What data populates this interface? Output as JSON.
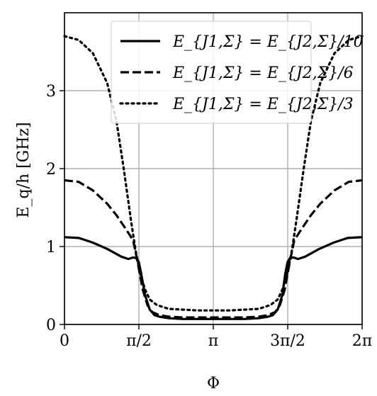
{
  "chart_data": {
    "type": "line",
    "xlabel": "Φ",
    "ylabel": "E_q/h [GHz]",
    "xlim": [
      0,
      6.283185307
    ],
    "ylim": [
      0,
      4.0
    ],
    "grid": true,
    "legend_position": "top-center",
    "x_ticks": [
      {
        "value": 0,
        "label": "0"
      },
      {
        "value": 1.5707963,
        "label": "π/2"
      },
      {
        "value": 3.1415927,
        "label": "π"
      },
      {
        "value": 4.712389,
        "label": "3π/2"
      },
      {
        "value": 6.2831853,
        "label": "2π"
      }
    ],
    "y_ticks": [
      {
        "value": 0,
        "label": "0"
      },
      {
        "value": 1,
        "label": "1"
      },
      {
        "value": 2,
        "label": "2"
      },
      {
        "value": 3,
        "label": "3"
      }
    ],
    "series": [
      {
        "name": "E_{J1,Σ} = E_{J2,Σ}/10",
        "style": "solid",
        "color": "#000000",
        "x": [
          0,
          0.3,
          0.6,
          0.9,
          1.2,
          1.35,
          1.45,
          1.52,
          1.57,
          1.62,
          1.7,
          1.8,
          1.9,
          2.0,
          2.2,
          2.5,
          2.8,
          3.1416,
          3.5,
          3.8,
          4.1,
          4.3,
          4.4,
          4.5,
          4.6,
          4.66,
          4.71,
          4.76,
          4.83,
          4.93,
          5.08,
          5.38,
          5.68,
          5.98,
          6.2832
        ],
        "y": [
          1.12,
          1.11,
          1.05,
          0.97,
          0.87,
          0.84,
          0.86,
          0.85,
          0.8,
          0.65,
          0.38,
          0.19,
          0.12,
          0.1,
          0.08,
          0.07,
          0.07,
          0.07,
          0.07,
          0.07,
          0.08,
          0.1,
          0.12,
          0.19,
          0.38,
          0.65,
          0.8,
          0.85,
          0.86,
          0.84,
          0.87,
          0.97,
          1.05,
          1.11,
          1.12
        ]
      },
      {
        "name": "E_{J1,Σ} = E_{J2,Σ}/6",
        "style": "dashed",
        "color": "#000000",
        "x": [
          0,
          0.3,
          0.6,
          0.9,
          1.1,
          1.3,
          1.45,
          1.55,
          1.65,
          1.75,
          1.85,
          2.0,
          2.2,
          2.5,
          2.8,
          3.1416,
          3.5,
          3.8,
          4.1,
          4.3,
          4.45,
          4.55,
          4.65,
          4.75,
          4.85,
          5.0,
          5.2,
          5.4,
          5.7,
          6.0,
          6.2832
        ],
        "y": [
          1.85,
          1.83,
          1.72,
          1.55,
          1.4,
          1.22,
          1.08,
          0.78,
          0.45,
          0.25,
          0.16,
          0.12,
          0.1,
          0.09,
          0.09,
          0.09,
          0.09,
          0.09,
          0.1,
          0.12,
          0.16,
          0.25,
          0.45,
          0.78,
          1.08,
          1.22,
          1.4,
          1.55,
          1.72,
          1.83,
          1.85
        ]
      },
      {
        "name": "E_{J1,Σ} = E_{J2,Σ}/3",
        "style": "dotted",
        "color": "#000000",
        "x": [
          0,
          0.3,
          0.6,
          0.9,
          1.1,
          1.25,
          1.4,
          1.5,
          1.6,
          1.7,
          1.8,
          1.95,
          2.2,
          2.5,
          2.8,
          3.1416,
          3.5,
          3.8,
          4.1,
          4.35,
          4.5,
          4.6,
          4.7,
          4.8,
          4.9,
          5.05,
          5.2,
          5.4,
          5.7,
          6.0,
          6.2832
        ],
        "y": [
          3.7,
          3.65,
          3.48,
          3.1,
          2.6,
          2.0,
          1.35,
          0.95,
          0.65,
          0.45,
          0.32,
          0.25,
          0.2,
          0.19,
          0.18,
          0.18,
          0.18,
          0.19,
          0.2,
          0.25,
          0.32,
          0.45,
          0.65,
          0.95,
          1.35,
          2.0,
          2.6,
          3.1,
          3.48,
          3.65,
          3.7
        ]
      }
    ]
  }
}
